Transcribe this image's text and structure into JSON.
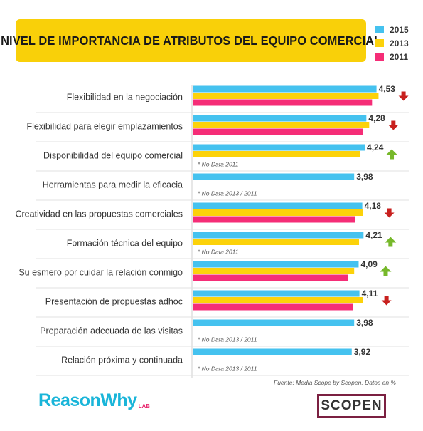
{
  "title": "NIVEL DE IMPORTANCIA DE ATRIBUTOS DEL EQUIPO COMERCIAL",
  "legend": [
    {
      "label": "2015",
      "color": "#45c2ef"
    },
    {
      "label": "2013",
      "color": "#fcd20a"
    },
    {
      "label": "2011",
      "color": "#f52d77"
    }
  ],
  "source": "Fuente: Media Scope by Scopen. Datos en %",
  "logos": {
    "reasonwhy": "ReasonWhy",
    "reasonwhy_suffix": "LAB",
    "scopen": "SCOPEN"
  },
  "chart_data": {
    "type": "bar",
    "orientation": "horizontal",
    "value_axis": {
      "visible": false,
      "ylim": [
        0,
        4.8
      ]
    },
    "series": [
      {
        "name": "2015",
        "color": "#45c2ef"
      },
      {
        "name": "2013",
        "color": "#fcd20a"
      },
      {
        "name": "2011",
        "color": "#f52d77"
      }
    ],
    "categories": [
      {
        "label": "Flexibilidad en la negociación",
        "values": [
          4.53,
          4.58,
          4.42
        ],
        "value_label": "4,53",
        "trend": "down",
        "note": ""
      },
      {
        "label": "Flexibilidad para elegir emplazamientos",
        "values": [
          4.28,
          4.35,
          4.2
        ],
        "value_label": "4,28",
        "trend": "down",
        "note": ""
      },
      {
        "label": "Disponibilidad del equipo comercial",
        "values": [
          4.24,
          4.12,
          null
        ],
        "value_label": "4,24",
        "trend": "up",
        "note": "* No Data 2011"
      },
      {
        "label": "Herramientas para medir la eficacia",
        "values": [
          3.98,
          null,
          null
        ],
        "value_label": "3,98",
        "trend": "",
        "note": "* No Data 2013 / 2011"
      },
      {
        "label": "Creatividad en las propuestas comerciales",
        "values": [
          4.18,
          4.2,
          4.0
        ],
        "value_label": "4,18",
        "trend": "down",
        "note": ""
      },
      {
        "label": "Formación técnica del equipo",
        "values": [
          4.21,
          4.1,
          null
        ],
        "value_label": "4,21",
        "trend": "up",
        "note": "* No Data 2011"
      },
      {
        "label": "Su esmero por cuidar la relación conmigo",
        "values": [
          4.09,
          3.98,
          3.82
        ],
        "value_label": "4,09",
        "trend": "up",
        "note": ""
      },
      {
        "label": "Presentación de propuestas adhoc",
        "values": [
          4.11,
          4.2,
          3.95
        ],
        "value_label": "4,11",
        "trend": "down",
        "note": ""
      },
      {
        "label": "Preparación adecuada de las visitas",
        "values": [
          3.98,
          null,
          null
        ],
        "value_label": "3,98",
        "trend": "",
        "note": "* No Data 2013 / 2011"
      },
      {
        "label": "Relación próxima y continuada",
        "values": [
          3.92,
          null,
          null
        ],
        "value_label": "3,92",
        "trend": "",
        "note": "* No Data 2013 / 2011"
      }
    ]
  }
}
